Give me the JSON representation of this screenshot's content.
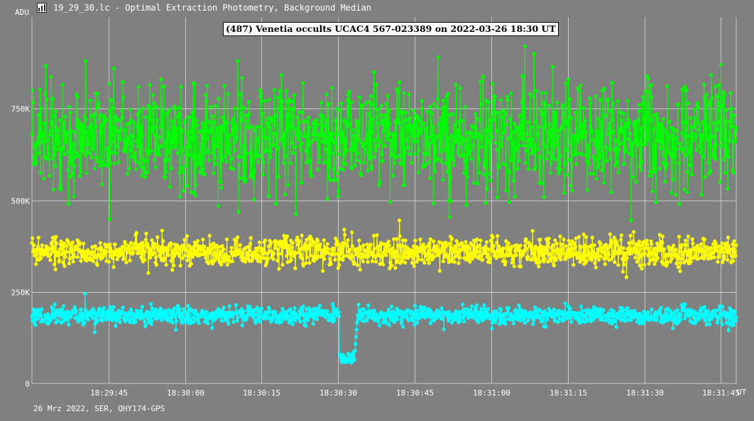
{
  "window": {
    "title": "19_29_30.lc - Optimal Extraction Photometry, Background Median",
    "icon": "chart-app-icon"
  },
  "footer": "26 Mrz 2022, SER, QHY174-GPS",
  "colors": {
    "background": "#808080",
    "grid": "#c8c8c8",
    "green": "#00ff00",
    "yellow": "#ffff00",
    "cyan": "#00ffff"
  },
  "chart_data": {
    "type": "line",
    "title": "(487) Venetia occults UCAC4 567-023389 on 2022-03-26 18:30 UT",
    "xlabel": "UT",
    "ylabel": "ADU",
    "xlim_seconds": [
      1770,
      1908
    ],
    "ylim": [
      0,
      1000000
    ],
    "x_ticks": [
      {
        "label": "18:29:45",
        "value": 1785
      },
      {
        "label": "18:30:00",
        "value": 1800
      },
      {
        "label": "18:30:15",
        "value": 1815
      },
      {
        "label": "18:30:30",
        "value": 1830
      },
      {
        "label": "18:30:45",
        "value": 1845
      },
      {
        "label": "18:31:00",
        "value": 1860
      },
      {
        "label": "18:31:15",
        "value": 1875
      },
      {
        "label": "18:31:30",
        "value": 1890
      },
      {
        "label": "18:31:45",
        "value": 1905
      }
    ],
    "y_ticks": [
      {
        "label": "0",
        "value": 0
      },
      {
        "label": "250K",
        "value": 250000
      },
      {
        "label": "500K",
        "value": 500000
      },
      {
        "label": "750K",
        "value": 750000
      }
    ],
    "grid": true,
    "legend": "none",
    "sample_interval_s": 0.1,
    "series": [
      {
        "color": "#00ff00",
        "baseline": 670000,
        "scatter_sd": 70000,
        "anchors": [
          {
            "x": 1770.1,
            "y": 800000
          },
          {
            "x": 1777.2,
            "y": 490000
          },
          {
            "x": 1780.5,
            "y": 880000
          },
          {
            "x": 1786.0,
            "y": 860000
          },
          {
            "x": 1799.0,
            "y": 510000
          },
          {
            "x": 1810.3,
            "y": 880000
          },
          {
            "x": 1817.8,
            "y": 490000
          },
          {
            "x": 1840.2,
            "y": 495000
          },
          {
            "x": 1849.6,
            "y": 890000
          },
          {
            "x": 1851.8,
            "y": 455000
          },
          {
            "x": 1863.5,
            "y": 495000
          },
          {
            "x": 1866.6,
            "y": 920000
          },
          {
            "x": 1868.4,
            "y": 900000
          },
          {
            "x": 1887.4,
            "y": 445000
          },
          {
            "x": 1905.0,
            "y": 870000
          }
        ]
      },
      {
        "color": "#ffff00",
        "baseline": 360000,
        "scatter_sd": 20000,
        "anchors": [
          {
            "x": 1831.2,
            "y": 420000
          },
          {
            "x": 1842.0,
            "y": 445000
          },
          {
            "x": 1886.5,
            "y": 290000
          }
        ]
      },
      {
        "color": "#00ffff",
        "baseline": 185000,
        "scatter_sd": 12000,
        "event": {
          "start": 1830.2,
          "end": 1833.2,
          "level": 70000
        },
        "anchors": [
          {
            "x": 1780.4,
            "y": 245000
          },
          {
            "x": 1782.3,
            "y": 140000
          },
          {
            "x": 1834.0,
            "y": 215000
          }
        ]
      }
    ]
  }
}
